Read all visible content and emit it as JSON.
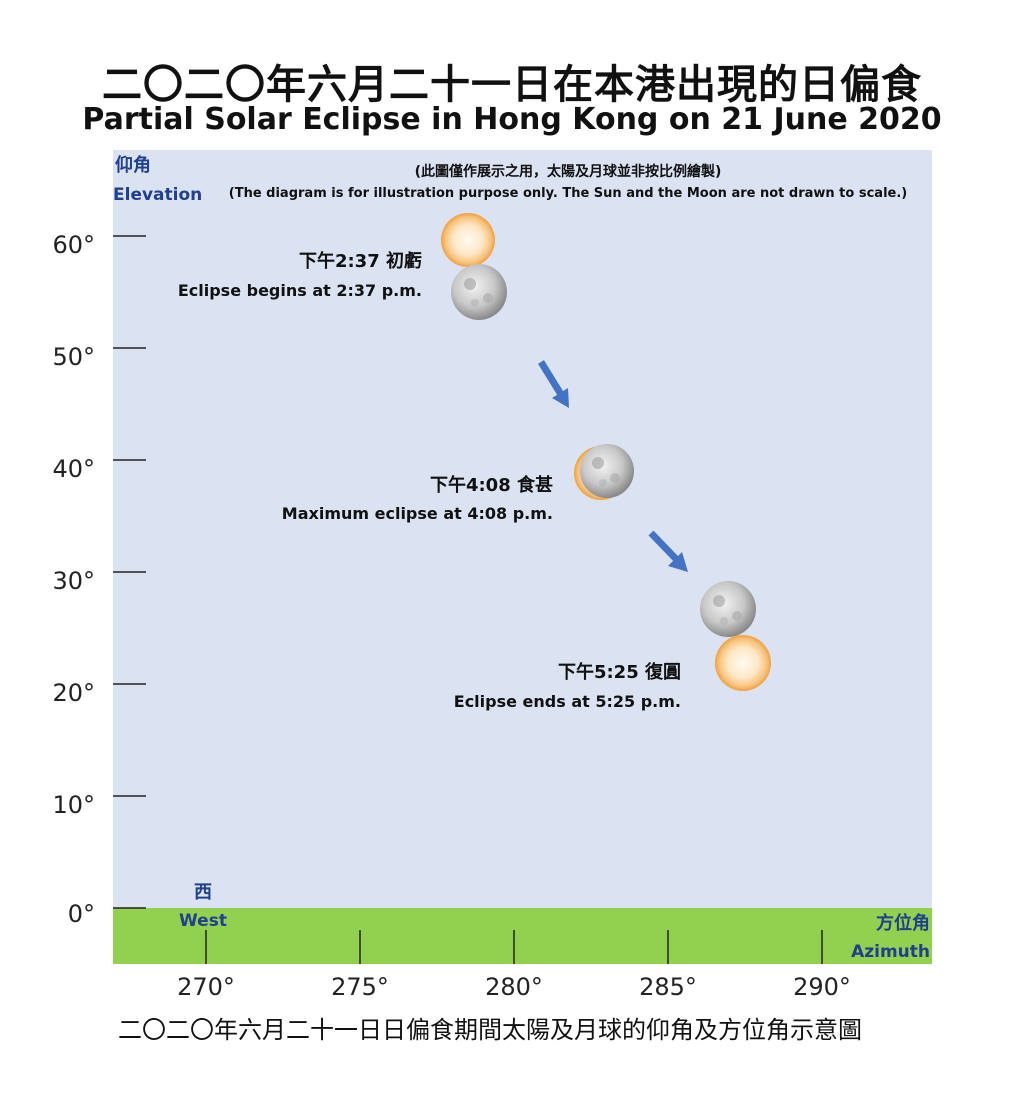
{
  "title_zh": "二〇二〇年六月二十一日在本港出現的日偏食",
  "title_en": "Partial Solar Eclipse in Hong Kong on 21 June 2020",
  "note_zh": "(此圖僅作展示之用，太陽及月球並非按比例繪製)",
  "note_en": "(The diagram is for illustration purpose only.  The Sun and the Moon are not drawn to scale.)",
  "y_axis": {
    "label_zh": "仰角",
    "label_en": "Elevation"
  },
  "x_axis": {
    "label_zh": "方位角",
    "label_en": "Azimuth"
  },
  "west": {
    "zh": "西",
    "en": "West"
  },
  "y_ticks": [
    "0°",
    "10°",
    "20°",
    "30°",
    "40°",
    "50°",
    "60°"
  ],
  "x_ticks": [
    "270°",
    "275°",
    "280°",
    "285°",
    "290°"
  ],
  "events": [
    {
      "time_zh": "下午2:37 初虧",
      "text_en": "Eclipse begins at 2:37 p.m."
    },
    {
      "time_zh": "下午4:08 食甚",
      "text_en": "Maximum eclipse at 4:08 p.m."
    },
    {
      "time_zh": "下午5:25 復圓",
      "text_en": "Eclipse ends at 5:25 p.m."
    }
  ],
  "caption": "二〇二〇年六月二十一日日偏食期間太陽及月球的仰角及方位角示意圖",
  "colors": {
    "sky": "#dbe3f3",
    "ground": "#92d050",
    "arrow": "#4472c4",
    "axis_text": "#1f3f8f"
  }
}
